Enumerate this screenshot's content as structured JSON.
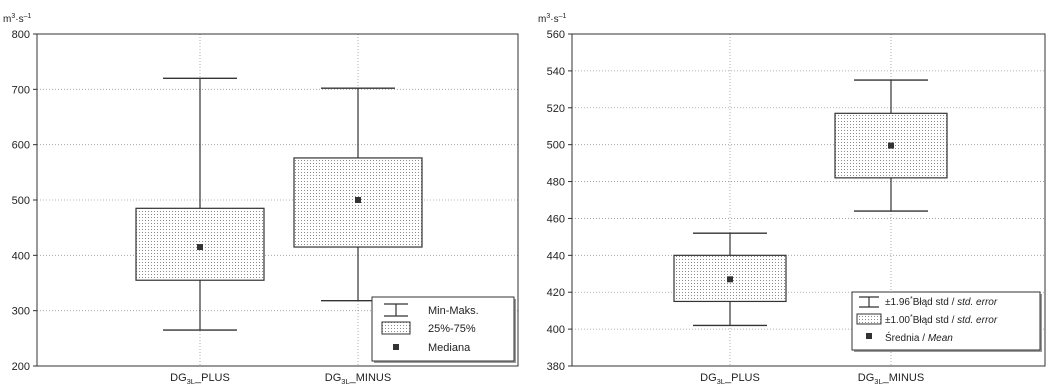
{
  "chart_data": [
    {
      "type": "box",
      "unit": {
        "base": "m",
        "exp1": "3",
        "mid": "·s",
        "exp2": "–1"
      },
      "ylim": [
        200,
        800
      ],
      "yticks": [
        "200",
        "300",
        "400",
        "500",
        "600",
        "700",
        "800"
      ],
      "categories": [
        {
          "main": "DG",
          "sub": "3L",
          "suffix": "_PLUS"
        },
        {
          "main": "DG",
          "sub": "3L",
          "suffix": "_MINUS"
        }
      ],
      "boxes": [
        {
          "min": 265,
          "q1": 355,
          "median": 415,
          "q3": 485,
          "max": 720
        },
        {
          "min": 318,
          "q1": 415,
          "median": 500,
          "q3": 576,
          "max": 702
        }
      ],
      "grid": true,
      "legend_position": "bottom-right",
      "legend": [
        "Min-Maks.",
        "25%-75%",
        "Mediana"
      ]
    },
    {
      "type": "box",
      "unit": {
        "base": "m",
        "exp1": "3",
        "mid": "·s",
        "exp2": "–1"
      },
      "ylim": [
        380,
        560
      ],
      "yticks": [
        "380",
        "400",
        "420",
        "440",
        "460",
        "480",
        "500",
        "520",
        "540",
        "560"
      ],
      "categories": [
        {
          "main": "DG",
          "sub": "3L",
          "suffix": "_PLUS"
        },
        {
          "main": "DG",
          "sub": "3L",
          "suffix": "_MINUS"
        }
      ],
      "boxes": [
        {
          "lower196": 402,
          "lower1": 415,
          "mean": 427,
          "upper1": 440,
          "upper196": 452
        },
        {
          "lower196": 464,
          "lower1": 482,
          "mean": 499.5,
          "upper1": 517,
          "upper196": 535
        }
      ],
      "grid": true,
      "legend_position": "bottom-right",
      "legend": [
        {
          "pre": "±1.96",
          "sup": "*",
          "mid": "Błąd std / ",
          "ital": "std. error"
        },
        {
          "pre": "±1.00",
          "sup": "*",
          "mid": "Błąd std / ",
          "ital": "std. error"
        },
        {
          "pre": "",
          "sup": "",
          "mid": "Średnia / ",
          "ital": "Mean"
        }
      ]
    }
  ]
}
